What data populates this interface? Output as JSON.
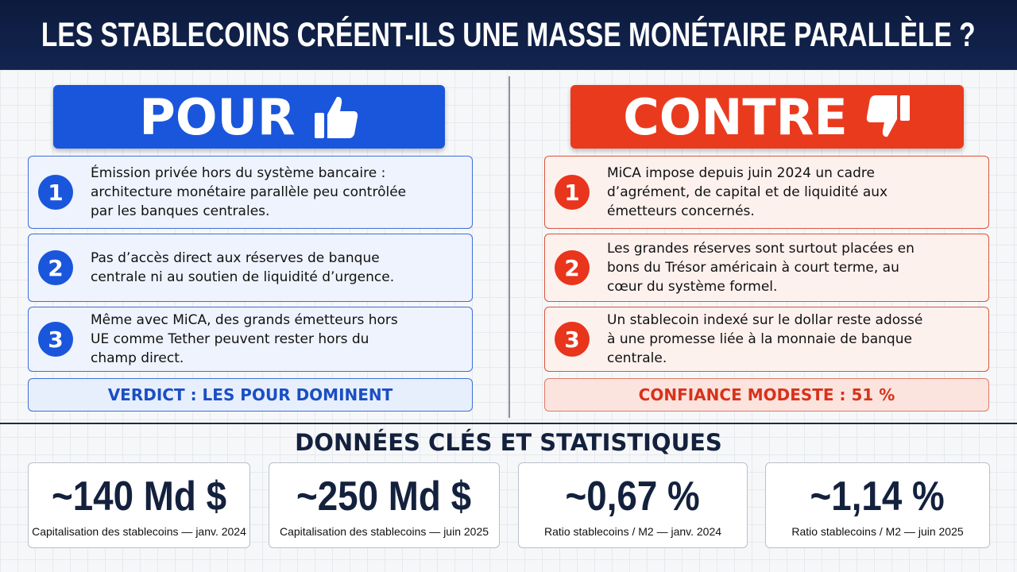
{
  "header": {
    "title": "LES STABLECOINS CRÉENT-ILS UNE MASSE MONÉTAIRE PARALLÈLE ?"
  },
  "pour": {
    "label": "POUR",
    "items": [
      {
        "number": "1",
        "text": "Émission privée hors du système bancaire : architecture monétaire parallèle peu contrôlée par les banques centrales."
      },
      {
        "number": "2",
        "text": "Pas d’accès direct aux réserves de banque centrale ni au soutien de liquidité d’urgence."
      },
      {
        "number": "3",
        "text": "Même avec MiCA, des grands émetteurs hors UE comme Tether peuvent rester hors du champ direct."
      }
    ],
    "verdict": "VERDICT : LES POUR DOMINENT"
  },
  "contre": {
    "label": "CONTRE",
    "items": [
      {
        "number": "1",
        "text": "MiCA impose depuis juin 2024 un cadre d’agrément, de capital et de liquidité aux émetteurs concernés."
      },
      {
        "number": "2",
        "text": "Les grandes réserves sont surtout placées en bons du Trésor américain à court terme, au cœur du système formel."
      },
      {
        "number": "3",
        "text": "Un stablecoin indexé sur le dollar reste adossé à une promesse liée à la monnaie de banque centrale."
      }
    ],
    "verdict": "CONFIANCE MODESTE : 51 %"
  },
  "stats": {
    "title": "DONNÉES CLÉS ET STATISTIQUES",
    "cards": [
      {
        "value": "~140 Md $",
        "label": "Capitalisation des stablecoins — janv. 2024"
      },
      {
        "value": "~250 Md $",
        "label": "Capitalisation des stablecoins — juin 2025"
      },
      {
        "value": "~0,67 %",
        "label": "Ratio stablecoins / M2 — janv. 2024"
      },
      {
        "value": "~1,14 %",
        "label": "Ratio stablecoins / M2 — juin 2025"
      }
    ]
  }
}
